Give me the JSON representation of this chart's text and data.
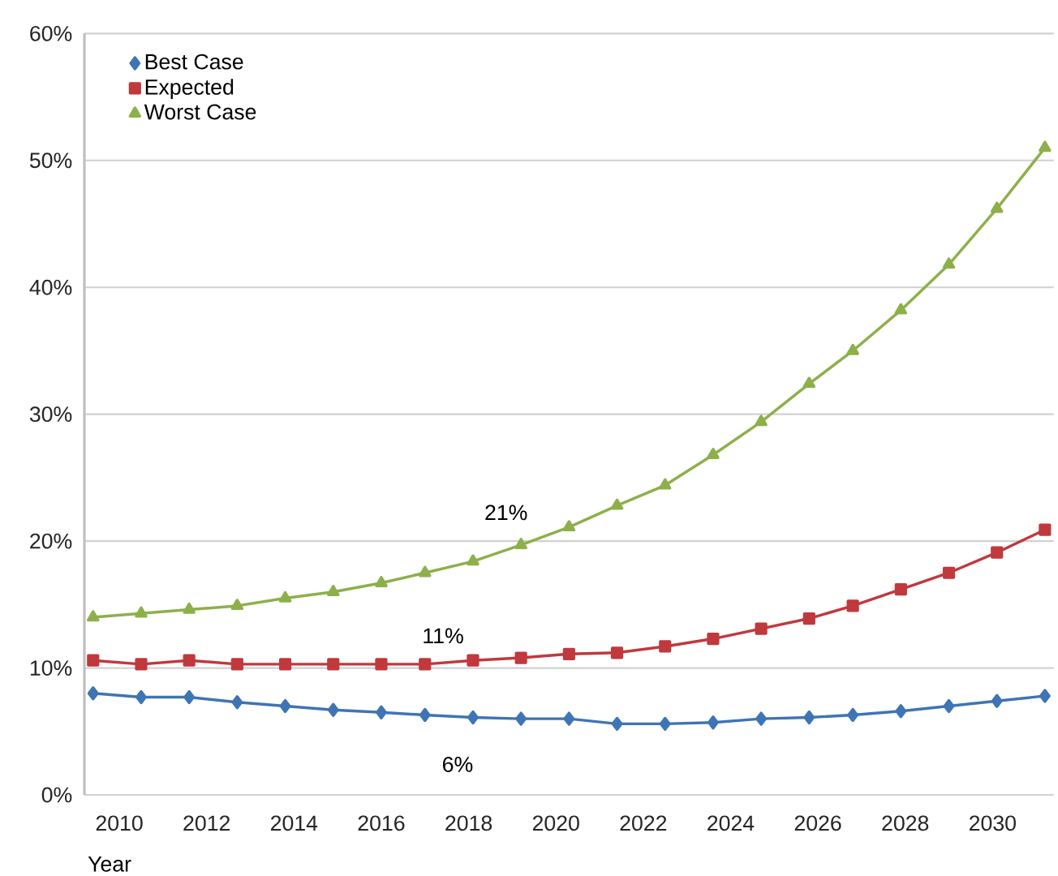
{
  "chart_data": {
    "type": "line",
    "xlabel": "Year",
    "x": [
      2009.4,
      2010.5,
      2011.6,
      2012.7,
      2013.8,
      2014.9,
      2016.0,
      2017.0,
      2018.1,
      2019.2,
      2020.3,
      2021.4,
      2022.5,
      2023.6,
      2024.7,
      2025.8,
      2026.8,
      2027.9,
      2029.0,
      2030.1,
      2031.2
    ],
    "series": [
      {
        "name": "Best Case",
        "color": "#3f74b5",
        "marker": "diamond",
        "values": [
          8.0,
          7.7,
          7.7,
          7.3,
          7.0,
          6.7,
          6.5,
          6.3,
          6.1,
          6.0,
          6.0,
          5.6,
          5.6,
          5.7,
          6.0,
          6.1,
          6.3,
          6.6,
          7.0,
          7.4,
          7.8
        ]
      },
      {
        "name": "Expected",
        "color": "#c0393d",
        "marker": "square",
        "values": [
          10.6,
          10.3,
          10.6,
          10.3,
          10.3,
          10.3,
          10.3,
          10.3,
          10.6,
          10.8,
          11.1,
          11.2,
          11.7,
          12.3,
          13.1,
          13.9,
          14.9,
          16.2,
          17.5,
          19.1,
          20.9
        ]
      },
      {
        "name": "Worst Case",
        "color": "#8db04a",
        "marker": "triangle",
        "values": [
          14.0,
          14.3,
          14.6,
          14.9,
          15.5,
          16.0,
          16.7,
          17.5,
          18.4,
          19.7,
          21.1,
          22.8,
          24.4,
          26.8,
          29.4,
          32.4,
          35.0,
          38.2,
          41.8,
          46.2,
          51.0
        ]
      }
    ],
    "xlim": [
      2009.2,
      2031.4
    ],
    "ylim": [
      0,
      60
    ],
    "xticks": [
      2010,
      2012,
      2014,
      2016,
      2018,
      2020,
      2022,
      2024,
      2026,
      2028,
      2030
    ],
    "yticks": [
      {
        "value": 0,
        "label": "0%"
      },
      {
        "value": 10,
        "label": "10%"
      },
      {
        "value": 20,
        "label": "20%"
      },
      {
        "value": 30,
        "label": "30%"
      },
      {
        "value": 40,
        "label": "40%"
      },
      {
        "value": 50,
        "label": "50%"
      },
      {
        "value": 60,
        "label": "60%"
      }
    ],
    "annotations": [
      "21%",
      "11%",
      "6%"
    ],
    "grid": "y",
    "legend": "top left",
    "line_style": "solid"
  }
}
